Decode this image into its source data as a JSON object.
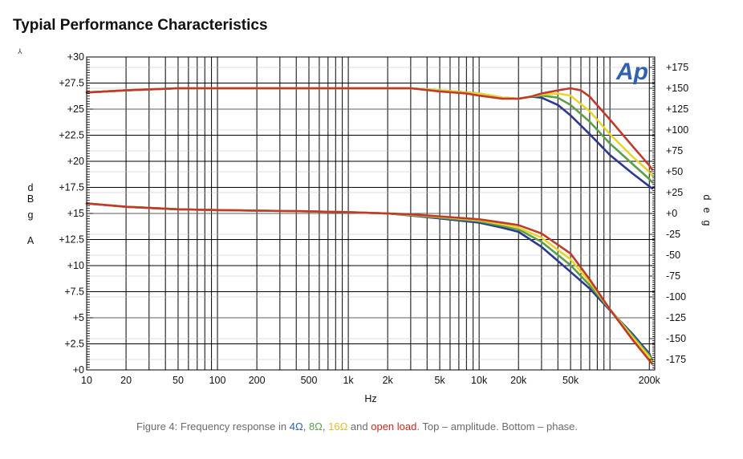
{
  "page": {
    "title": "Typial Performance Characteristics",
    "mark": "⅄"
  },
  "caption": {
    "prefix": "Figure 4: Frequency response in ",
    "load1": "4Ω",
    "sep1": ", ",
    "load2": "8Ω",
    "sep2": ", ",
    "load3": "16Ω",
    "sep3": " and ",
    "load4": "open load",
    "suffix": ". Top – amplitude. Bottom – phase."
  },
  "chart_data": {
    "type": "line",
    "logo": "Ap",
    "xlabel": "Hz",
    "ylabel": "dBgA",
    "y2label": "deg",
    "xscale": "log",
    "xlim": [
      10,
      220000
    ],
    "ylim": [
      0,
      30
    ],
    "y2lim": [
      -187.5,
      187.5
    ],
    "x_ticks": [
      {
        "v": 10,
        "label": "10"
      },
      {
        "v": 20,
        "label": "20"
      },
      {
        "v": 50,
        "label": "50"
      },
      {
        "v": 100,
        "label": "100"
      },
      {
        "v": 200,
        "label": "200"
      },
      {
        "v": 500,
        "label": "500"
      },
      {
        "v": 1000,
        "label": "1k"
      },
      {
        "v": 2000,
        "label": "2k"
      },
      {
        "v": 5000,
        "label": "5k"
      },
      {
        "v": 10000,
        "label": "10k"
      },
      {
        "v": 20000,
        "label": "20k"
      },
      {
        "v": 50000,
        "label": "50k"
      },
      {
        "v": 200000,
        "label": "200k"
      }
    ],
    "y_ticks": [
      {
        "v": 30,
        "label": "+30"
      },
      {
        "v": 27.5,
        "label": "+27.5"
      },
      {
        "v": 25,
        "label": "+25"
      },
      {
        "v": 22.5,
        "label": "+22.5"
      },
      {
        "v": 20,
        "label": "+20"
      },
      {
        "v": 17.5,
        "label": "+17.5"
      },
      {
        "v": 15,
        "label": "+15"
      },
      {
        "v": 12.5,
        "label": "+12.5"
      },
      {
        "v": 10,
        "label": "+10"
      },
      {
        "v": 7.5,
        "label": "+7.5"
      },
      {
        "v": 5,
        "label": "+5"
      },
      {
        "v": 2.5,
        "label": "+2.5"
      },
      {
        "v": 0,
        "label": "+0"
      }
    ],
    "y2_ticks": [
      {
        "v": 175,
        "label": "+175"
      },
      {
        "v": 150,
        "label": "+150"
      },
      {
        "v": 125,
        "label": "+125"
      },
      {
        "v": 100,
        "label": "+100"
      },
      {
        "v": 75,
        "label": "+75"
      },
      {
        "v": 50,
        "label": "+50"
      },
      {
        "v": 25,
        "label": "+25"
      },
      {
        "v": 0,
        "label": "+0"
      },
      {
        "v": -25,
        "label": "-25"
      },
      {
        "v": -50,
        "label": "-50"
      },
      {
        "v": -75,
        "label": "-75"
      },
      {
        "v": -100,
        "label": "-100"
      },
      {
        "v": -125,
        "label": "-125"
      },
      {
        "v": -150,
        "label": "-150"
      },
      {
        "v": -175,
        "label": "-175"
      }
    ],
    "grid": true,
    "series": [
      {
        "name": "4Ω",
        "axis": "left",
        "color": "#2b3990",
        "points": [
          [
            10,
            26.6
          ],
          [
            20,
            26.8
          ],
          [
            50,
            27.0
          ],
          [
            100,
            27.0
          ],
          [
            500,
            27.0
          ],
          [
            1000,
            27.0
          ],
          [
            3000,
            27.0
          ],
          [
            5000,
            26.8
          ],
          [
            8000,
            26.6
          ],
          [
            10000,
            26.5
          ],
          [
            15000,
            26.1
          ],
          [
            20000,
            26.0
          ],
          [
            25000,
            26.2
          ],
          [
            30000,
            26.1
          ],
          [
            40000,
            25.4
          ],
          [
            50000,
            24.4
          ],
          [
            70000,
            22.6
          ],
          [
            100000,
            20.6
          ],
          [
            150000,
            18.8
          ],
          [
            200000,
            17.6
          ],
          [
            210000,
            17.4
          ]
        ]
      },
      {
        "name": "8Ω",
        "axis": "left",
        "color": "#5aa04a",
        "points": [
          [
            10,
            26.6
          ],
          [
            20,
            26.8
          ],
          [
            50,
            27.0
          ],
          [
            100,
            27.0
          ],
          [
            500,
            27.0
          ],
          [
            1000,
            27.0
          ],
          [
            3000,
            27.0
          ],
          [
            5000,
            26.8
          ],
          [
            8000,
            26.6
          ],
          [
            10000,
            26.5
          ],
          [
            15000,
            26.1
          ],
          [
            20000,
            26.0
          ],
          [
            25000,
            26.2
          ],
          [
            30000,
            26.3
          ],
          [
            40000,
            26.1
          ],
          [
            50000,
            25.4
          ],
          [
            70000,
            23.8
          ],
          [
            100000,
            21.7
          ],
          [
            150000,
            19.7
          ],
          [
            200000,
            18.3
          ],
          [
            210000,
            18.0
          ]
        ]
      },
      {
        "name": "16Ω",
        "axis": "left",
        "color": "#e8d52b",
        "points": [
          [
            10,
            26.6
          ],
          [
            20,
            26.8
          ],
          [
            50,
            27.0
          ],
          [
            100,
            27.0
          ],
          [
            500,
            27.0
          ],
          [
            1000,
            27.0
          ],
          [
            3000,
            27.0
          ],
          [
            5000,
            26.8
          ],
          [
            8000,
            26.6
          ],
          [
            10000,
            26.5
          ],
          [
            15000,
            26.1
          ],
          [
            20000,
            26.0
          ],
          [
            25000,
            26.2
          ],
          [
            30000,
            26.4
          ],
          [
            40000,
            26.5
          ],
          [
            50000,
            26.3
          ],
          [
            70000,
            24.8
          ],
          [
            100000,
            22.6
          ],
          [
            150000,
            20.4
          ],
          [
            200000,
            19.0
          ],
          [
            210000,
            18.6
          ]
        ]
      },
      {
        "name": "open load",
        "axis": "left",
        "color": "#c0392b",
        "points": [
          [
            10,
            26.6
          ],
          [
            20,
            26.8
          ],
          [
            50,
            27.0
          ],
          [
            100,
            27.0
          ],
          [
            500,
            27.0
          ],
          [
            1000,
            27.0
          ],
          [
            3000,
            27.0
          ],
          [
            5000,
            26.7
          ],
          [
            8000,
            26.5
          ],
          [
            10000,
            26.3
          ],
          [
            15000,
            26.0
          ],
          [
            20000,
            26.0
          ],
          [
            25000,
            26.2
          ],
          [
            30000,
            26.5
          ],
          [
            40000,
            26.8
          ],
          [
            50000,
            27.0
          ],
          [
            60000,
            26.8
          ],
          [
            70000,
            26.2
          ],
          [
            100000,
            24.0
          ],
          [
            150000,
            21.4
          ],
          [
            200000,
            19.6
          ],
          [
            210000,
            19.2
          ]
        ]
      },
      {
        "name": "4Ω",
        "axis": "right",
        "color": "#2b3990",
        "points": [
          [
            10,
            12
          ],
          [
            20,
            8
          ],
          [
            50,
            5
          ],
          [
            100,
            4
          ],
          [
            300,
            3
          ],
          [
            500,
            2.5
          ],
          [
            1000,
            1.5
          ],
          [
            2000,
            0
          ],
          [
            3000,
            -2.5
          ],
          [
            5000,
            -6
          ],
          [
            10000,
            -11
          ],
          [
            15000,
            -17
          ],
          [
            20000,
            -22
          ],
          [
            30000,
            -40
          ],
          [
            50000,
            -70
          ],
          [
            70000,
            -90
          ],
          [
            100000,
            -116
          ],
          [
            150000,
            -145
          ],
          [
            200000,
            -168
          ],
          [
            210000,
            -176
          ]
        ]
      },
      {
        "name": "8Ω",
        "axis": "right",
        "color": "#5aa04a",
        "points": [
          [
            10,
            12
          ],
          [
            20,
            8
          ],
          [
            50,
            5
          ],
          [
            100,
            4
          ],
          [
            300,
            3
          ],
          [
            500,
            2.5
          ],
          [
            1000,
            1.5
          ],
          [
            2000,
            0
          ],
          [
            3000,
            -2
          ],
          [
            5000,
            -5
          ],
          [
            10000,
            -9.5
          ],
          [
            15000,
            -15
          ],
          [
            20000,
            -19
          ],
          [
            30000,
            -34
          ],
          [
            50000,
            -62
          ],
          [
            70000,
            -86
          ],
          [
            100000,
            -115
          ],
          [
            150000,
            -147
          ],
          [
            200000,
            -170
          ],
          [
            210000,
            -177
          ]
        ]
      },
      {
        "name": "16Ω",
        "axis": "right",
        "color": "#e8d52b",
        "points": [
          [
            10,
            12
          ],
          [
            20,
            8
          ],
          [
            50,
            5
          ],
          [
            100,
            4
          ],
          [
            300,
            3
          ],
          [
            500,
            2.5
          ],
          [
            1000,
            1.5
          ],
          [
            2000,
            0
          ],
          [
            3000,
            -1.5
          ],
          [
            5000,
            -4
          ],
          [
            10000,
            -8
          ],
          [
            15000,
            -13
          ],
          [
            20000,
            -17
          ],
          [
            30000,
            -29
          ],
          [
            50000,
            -55
          ],
          [
            70000,
            -82
          ],
          [
            100000,
            -115
          ],
          [
            150000,
            -149
          ],
          [
            200000,
            -172
          ],
          [
            210000,
            -178
          ]
        ]
      },
      {
        "name": "open load",
        "axis": "right",
        "color": "#c0392b",
        "points": [
          [
            10,
            12
          ],
          [
            20,
            8
          ],
          [
            50,
            5
          ],
          [
            100,
            4
          ],
          [
            300,
            3
          ],
          [
            500,
            2.5
          ],
          [
            1000,
            1.5
          ],
          [
            2000,
            0
          ],
          [
            3000,
            -1
          ],
          [
            5000,
            -3.5
          ],
          [
            10000,
            -7
          ],
          [
            15000,
            -11
          ],
          [
            20000,
            -14
          ],
          [
            30000,
            -24
          ],
          [
            50000,
            -48
          ],
          [
            70000,
            -79
          ],
          [
            100000,
            -115
          ],
          [
            150000,
            -152
          ],
          [
            200000,
            -176
          ],
          [
            210000,
            -180
          ]
        ]
      }
    ]
  }
}
